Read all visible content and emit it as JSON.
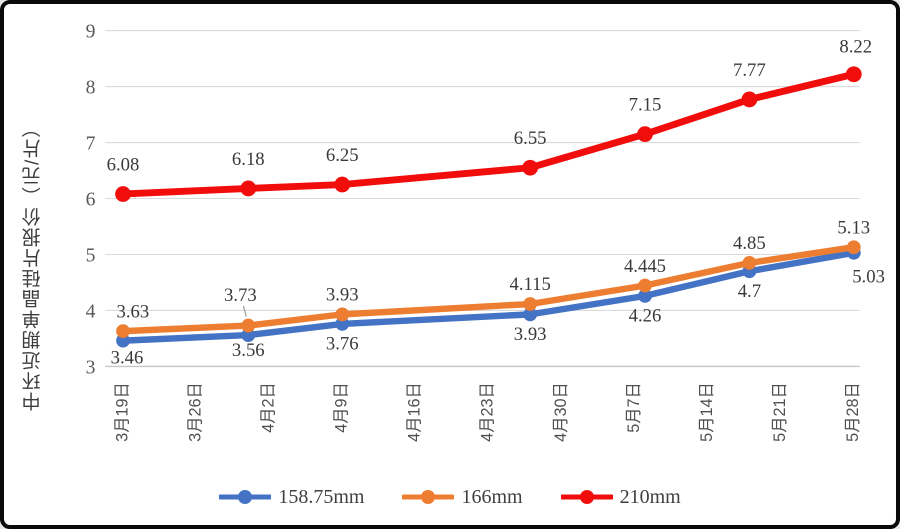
{
  "window": {
    "background": "#ffffff",
    "border_color": "#0a0a0a"
  },
  "chart_data": {
    "type": "line",
    "title": "",
    "ylabel": "中环近期单晶硅片报价（元/片）",
    "xlabel": "",
    "ylim": [
      3,
      9
    ],
    "y_ticks": [
      3,
      4,
      5,
      6,
      7,
      8,
      9
    ],
    "grid": true,
    "legend_position": "bottom",
    "x_tick_labels": [
      "3月19日",
      "3月26日",
      "4月2日",
      "4月9日",
      "4月16日",
      "4月23日",
      "4月30日",
      "5月7日",
      "5月14日",
      "5月21日",
      "5月28日"
    ],
    "x_tick_days": [
      0,
      7,
      14,
      21,
      28,
      35,
      42,
      49,
      56,
      63,
      70
    ],
    "x_range_days": [
      0,
      70
    ],
    "point_days": [
      0,
      12,
      21,
      39,
      50,
      60,
      70
    ],
    "series": [
      {
        "name": "158.75mm",
        "color": "#4472C4",
        "values": [
          3.46,
          3.56,
          3.76,
          3.93,
          4.26,
          4.7,
          5.03
        ],
        "label_side": "below",
        "label_dy": 26,
        "line_width": 6.5,
        "marker_r": 7
      },
      {
        "name": "166mm",
        "color": "#ED7D31",
        "values": [
          3.63,
          3.73,
          3.93,
          4.115,
          4.445,
          4.85,
          5.13
        ],
        "label_side": "above",
        "label_dy": -14,
        "line_width": 6.5,
        "marker_r": 7
      },
      {
        "name": "210mm",
        "color": "#F20D0D",
        "values": [
          6.08,
          6.18,
          6.25,
          6.55,
          7.15,
          7.77,
          8.22
        ],
        "label_side": "above",
        "label_dy": -24,
        "line_width": 7,
        "marker_r": 8
      }
    ],
    "label_offset_overrides": {
      "0,0": [
        4,
        -3
      ],
      "0,1": [
        0,
        -5
      ],
      "0,6": [
        15,
        4
      ],
      "1,0": [
        10,
        0
      ],
      "1,1": [
        -8,
        -11
      ],
      "2,6": [
        2,
        2
      ]
    },
    "leader_points": [
      [
        1,
        1
      ]
    ],
    "styles": {
      "grid_color": "#dadada",
      "axis_line_color": "#c6c6c6",
      "axis_text_color": "#595959",
      "data_label_color": "#3a3a3a",
      "tick_text_color": "#4f4f4f",
      "legend_text_color": "#404040",
      "leader_line_color": "#9a9a9a"
    }
  }
}
